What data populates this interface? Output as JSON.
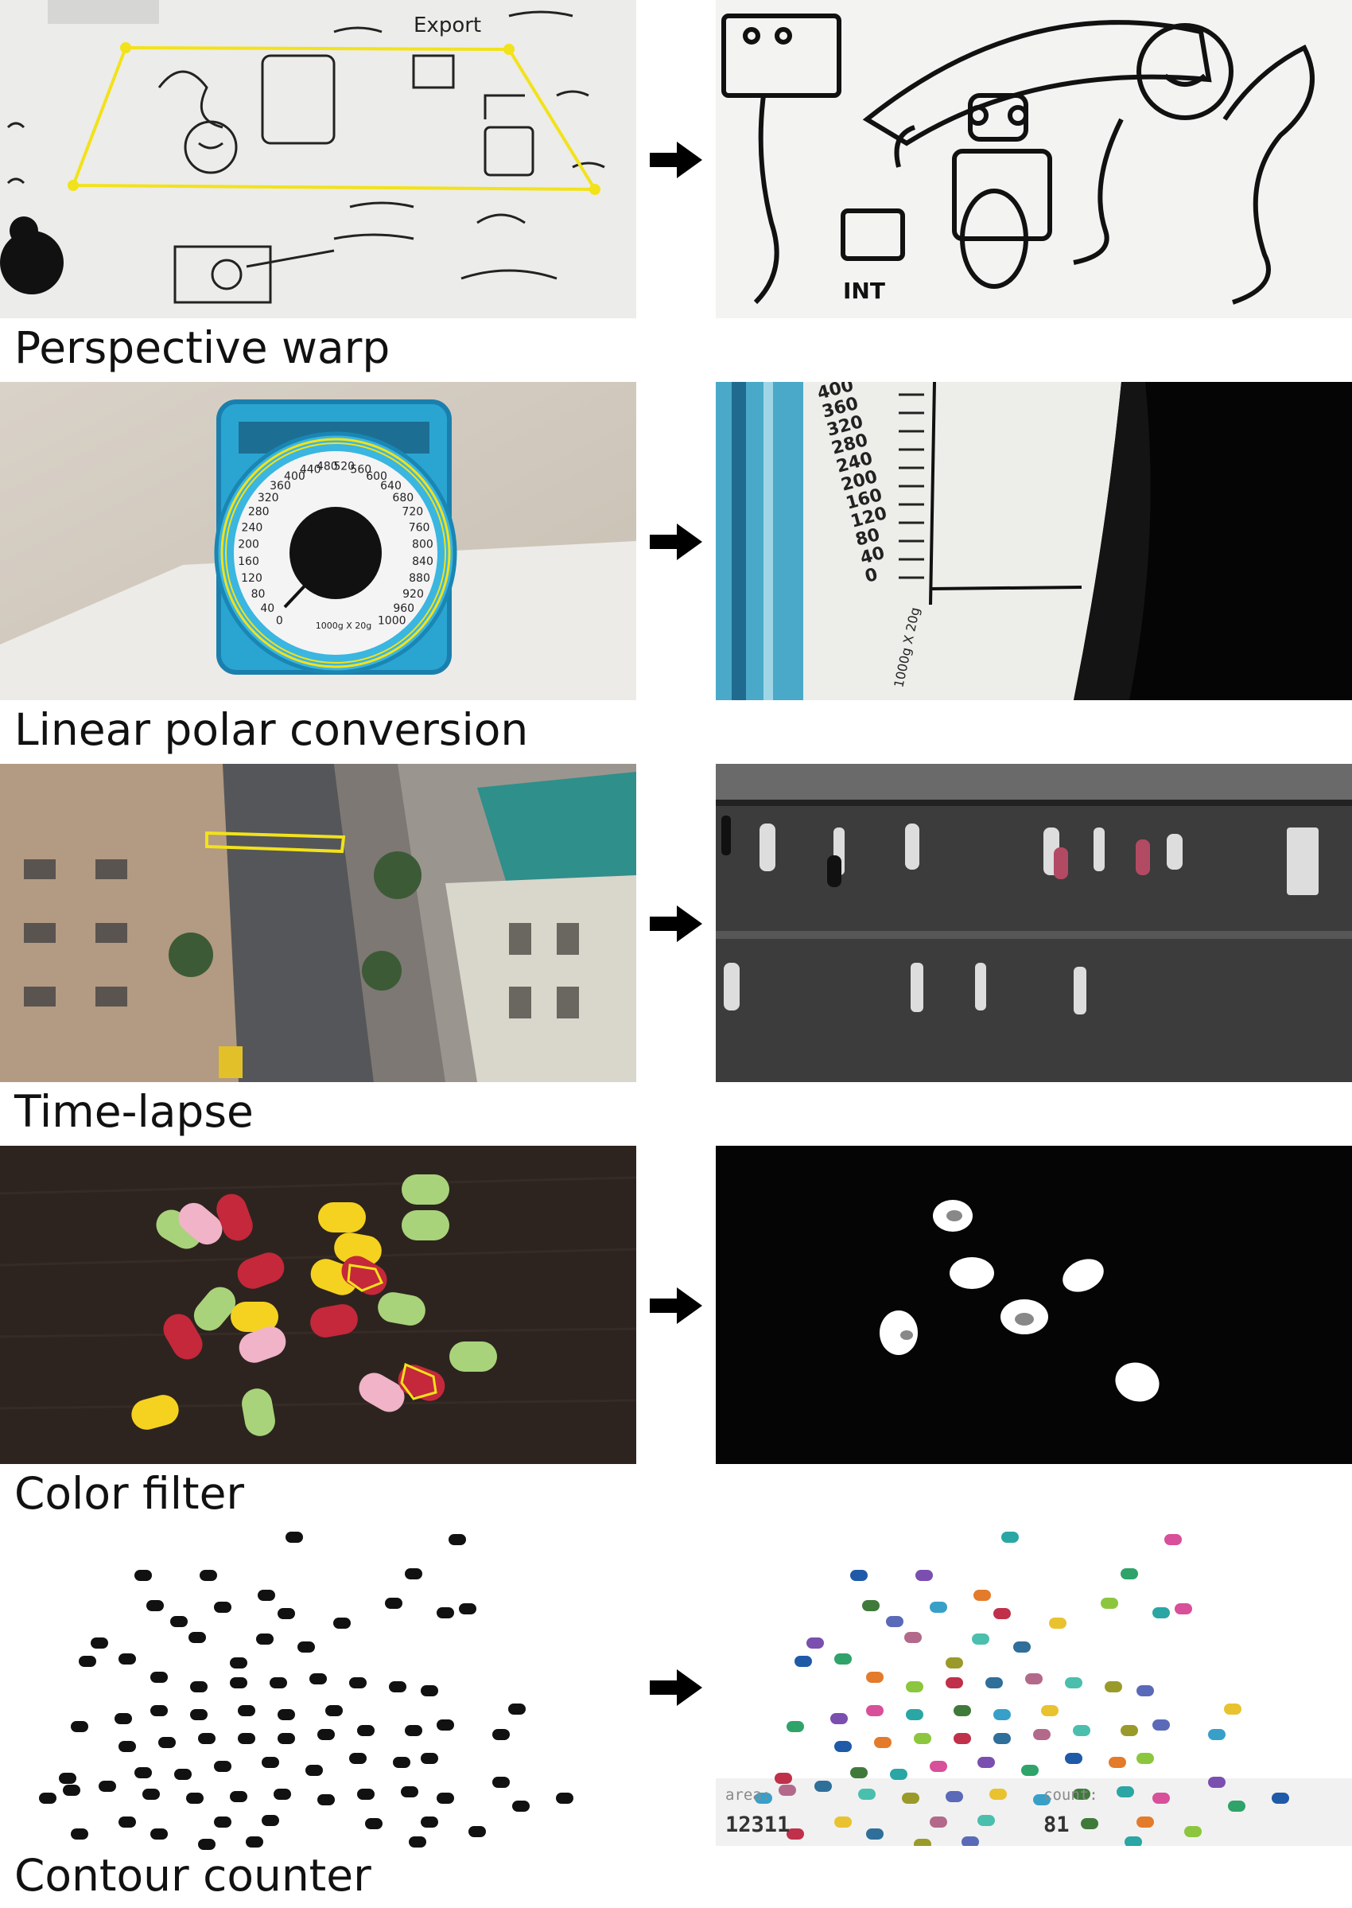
{
  "rows": [
    {
      "caption": "Perspective warp"
    },
    {
      "caption": "Linear polar conversion"
    },
    {
      "caption": "Time-lapse"
    },
    {
      "caption": "Color filter"
    },
    {
      "caption": "Contour counter"
    }
  ],
  "sketch": {
    "note_a": "Export",
    "note_b": "INT",
    "note_c": "打ち合せ"
  },
  "dial": {
    "ticks": [
      "0",
      "40",
      "80",
      "120",
      "160",
      "200",
      "240",
      "280",
      "320",
      "360",
      "400",
      "440",
      "480",
      "520",
      "560",
      "600",
      "640",
      "680",
      "720",
      "760",
      "800",
      "840",
      "880",
      "920",
      "960",
      "1000"
    ],
    "legend": "1000g X 20g",
    "unwrapped_ticks": [
      "400",
      "360",
      "320",
      "280",
      "240",
      "200",
      "160",
      "120",
      "80",
      "40",
      "0"
    ],
    "unwrapped_legend": "1000g X 20g"
  },
  "counter": {
    "area_label": "area:",
    "area_value": "12311",
    "count_label": "count:",
    "count_value": "81"
  },
  "colors": {
    "highlight": "#f2e21a",
    "arrow": "#000000",
    "candy_red": "#c4283a",
    "candy_yellow": "#f5d21f",
    "candy_green": "#a9d37a",
    "candy_pink": "#f0b3c8"
  },
  "icons": {
    "arrow": "right-arrow-icon"
  }
}
